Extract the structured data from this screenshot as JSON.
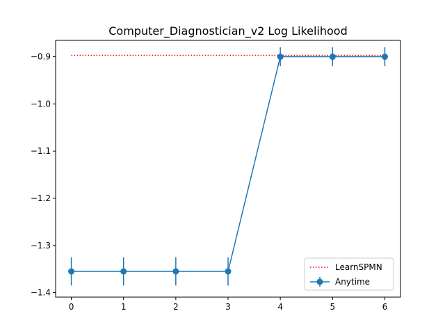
{
  "chart_data": {
    "type": "line",
    "title": "Computer_Diagnostician_v2 Log Likelihood",
    "xlabel": "",
    "ylabel": "",
    "xlim": [
      -0.3,
      6.3
    ],
    "ylim": [
      -1.4095,
      -0.8653
    ],
    "x_ticks": [
      0,
      1,
      2,
      3,
      4,
      5,
      6
    ],
    "y_ticks": [
      -1.4,
      -1.3,
      -1.2,
      -1.1,
      -1.0,
      -0.9
    ],
    "y_tick_labels": [
      "−1.4",
      "−1.3",
      "−1.2",
      "−1.1",
      "−1.0",
      "−0.9"
    ],
    "grid": false,
    "legend_position": "bottom-right",
    "series": [
      {
        "name": "LearnSPMN",
        "style": "dotted",
        "color": "#ff0000",
        "x": [
          0,
          6
        ],
        "values": [
          -0.897,
          -0.897
        ]
      },
      {
        "name": "Anytime",
        "style": "solid-markers-errorbars",
        "color": "#1f77b4",
        "x": [
          0,
          1,
          2,
          3,
          4,
          5,
          6
        ],
        "values": [
          -1.355,
          -1.355,
          -1.355,
          -1.355,
          -0.9,
          -0.9,
          -0.9
        ],
        "errors": [
          0.03,
          0.03,
          0.03,
          0.03,
          0.02,
          0.02,
          0.02
        ]
      }
    ]
  }
}
